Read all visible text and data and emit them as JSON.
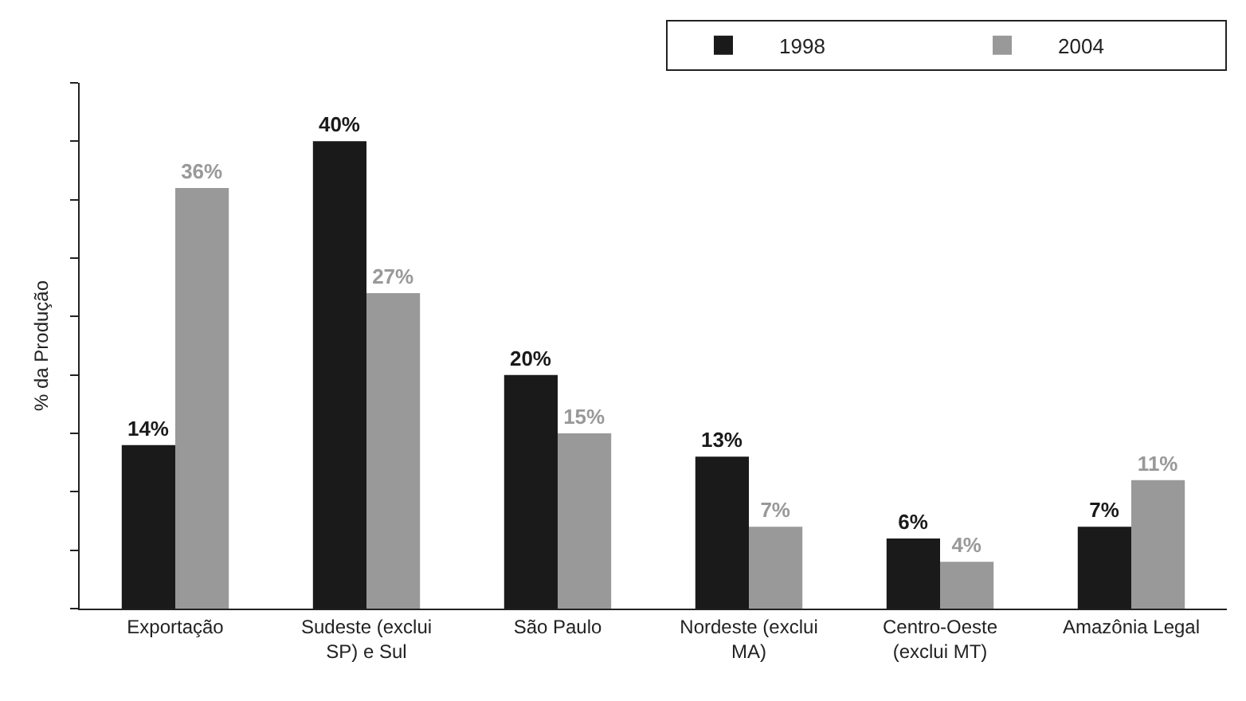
{
  "chart_data": {
    "type": "bar",
    "ylabel": "% da Produção",
    "categories": [
      "Exportação",
      "Sudeste (exclui\nSP) e Sul",
      "São Paulo",
      "Nordeste (exclui\nMA)",
      "Centro-Oeste\n(exclui MT)",
      "Amazônia Legal"
    ],
    "series": [
      {
        "name": "1998",
        "color": "#1a1a1a",
        "values": [
          14,
          40,
          20,
          13,
          6,
          7
        ],
        "value_labels": [
          "14%",
          "40%",
          "20%",
          "13%",
          "6%",
          "7%"
        ]
      },
      {
        "name": "2004",
        "color": "#999999",
        "values": [
          36,
          27,
          15,
          7,
          4,
          11
        ],
        "value_labels": [
          "36%",
          "27%",
          "15%",
          "7%",
          "4%",
          "11%"
        ]
      }
    ],
    "ylim": [
      0,
      45
    ],
    "yticks": [
      {
        "value": 0,
        "label": null
      },
      {
        "value": 5,
        "label": null
      },
      {
        "value": 10,
        "label": null
      },
      {
        "value": 15,
        "label": null
      },
      {
        "value": 20,
        "label": null
      },
      {
        "value": 25,
        "label": null
      },
      {
        "value": 30,
        "label": null
      },
      {
        "value": 35,
        "label": null
      },
      {
        "value": 40,
        "label": null
      },
      {
        "value": 45,
        "label": null
      }
    ],
    "legend": "top right"
  }
}
